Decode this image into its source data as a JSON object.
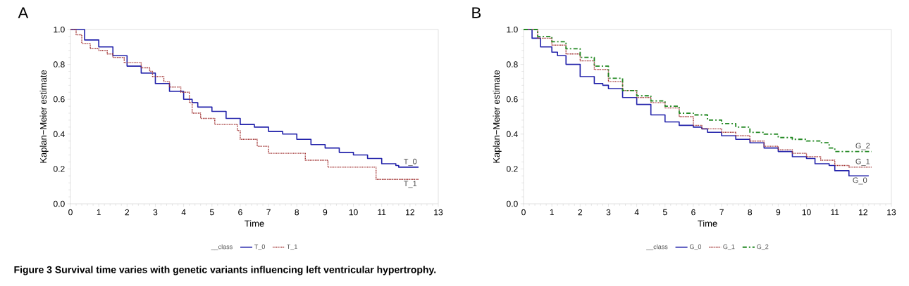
{
  "chart_data": [
    {
      "type": "step",
      "title": "A",
      "xlabel": "Time",
      "ylabel": "Kaplan−Meier estimate",
      "legend_title": "__class",
      "legend": "bottom",
      "grid": false,
      "xlim": [
        0,
        13
      ],
      "ylim": [
        0,
        1
      ],
      "xticks": [
        0,
        1,
        2,
        3,
        4,
        5,
        6,
        7,
        8,
        9,
        10,
        11,
        12,
        13
      ],
      "yticks": [
        {
          "value": 0,
          "label": "0.0"
        },
        {
          "value": 0.2,
          "label": "0.2"
        },
        {
          "value": 0.4,
          "label": "0.4"
        },
        {
          "value": 0.6,
          "label": "0.6"
        },
        {
          "value": 0.8,
          "label": "0.8"
        },
        {
          "value": 1,
          "label": "1.0"
        }
      ],
      "annotations": [
        "**Figure 3** Survival time varies with genetic variants influencing left ventricular hypertrophy."
      ],
      "series": [
        {
          "name": "T_0",
          "color": "#2222aa",
          "line_style": "solid",
          "x": [
            0,
            0.5,
            1,
            1.5,
            2,
            2.5,
            3,
            3.5,
            4,
            4.3,
            4.5,
            5,
            5.5,
            6,
            6.5,
            7,
            7.5,
            8,
            8.5,
            9,
            9.5,
            10,
            10.5,
            11,
            11.5,
            11.6,
            12.3
          ],
          "values": [
            1,
            0.94,
            0.9,
            0.85,
            0.79,
            0.75,
            0.69,
            0.645,
            0.6,
            0.58,
            0.555,
            0.53,
            0.49,
            0.455,
            0.44,
            0.415,
            0.4,
            0.37,
            0.34,
            0.32,
            0.295,
            0.28,
            0.26,
            0.23,
            0.22,
            0.21,
            0.21
          ]
        },
        {
          "name": "T_1",
          "color": "#a03030",
          "line_style": "dotted",
          "x": [
            0,
            0.2,
            0.4,
            0.7,
            1.0,
            1.3,
            1.5,
            1.9,
            2.5,
            2.8,
            2.9,
            3.3,
            3.5,
            3.9,
            4.2,
            4.3,
            4.6,
            5.1,
            5.9,
            6.0,
            6.6,
            7.0,
            8.3,
            9.1,
            10.8,
            12.3
          ],
          "values": [
            1,
            0.97,
            0.92,
            0.89,
            0.88,
            0.86,
            0.84,
            0.81,
            0.78,
            0.76,
            0.73,
            0.7,
            0.67,
            0.64,
            0.58,
            0.52,
            0.49,
            0.455,
            0.42,
            0.37,
            0.33,
            0.29,
            0.25,
            0.21,
            0.14,
            0.14
          ]
        }
      ]
    },
    {
      "type": "step",
      "title": "B",
      "xlabel": "Time",
      "ylabel": "Kaplan−Meier estimate",
      "legend_title": "__class",
      "legend": "bottom",
      "grid": false,
      "xlim": [
        0,
        13
      ],
      "ylim": [
        0,
        1
      ],
      "xticks": [
        0,
        1,
        2,
        3,
        4,
        5,
        6,
        7,
        8,
        9,
        10,
        11,
        12,
        13
      ],
      "yticks": [
        {
          "value": 0,
          "label": "0.0"
        },
        {
          "value": 0.2,
          "label": "0.2"
        },
        {
          "value": 0.4,
          "label": "0.4"
        },
        {
          "value": 0.6,
          "label": "0.6"
        },
        {
          "value": 0.8,
          "label": "0.8"
        },
        {
          "value": 1,
          "label": "1.0"
        }
      ],
      "series": [
        {
          "name": "G_0",
          "color": "#2222aa",
          "line_style": "solid",
          "x": [
            0,
            0.3,
            0.6,
            1,
            1.2,
            1.5,
            2,
            2.5,
            2.8,
            3,
            3.5,
            4,
            4.5,
            5,
            5.5,
            6,
            6.3,
            6.5,
            7,
            7.5,
            8,
            8.5,
            9,
            9.5,
            10,
            10.3,
            10.8,
            11,
            11.5,
            12.2
          ],
          "values": [
            1,
            0.95,
            0.9,
            0.87,
            0.85,
            0.8,
            0.73,
            0.69,
            0.68,
            0.66,
            0.61,
            0.57,
            0.51,
            0.47,
            0.45,
            0.44,
            0.43,
            0.41,
            0.39,
            0.37,
            0.35,
            0.32,
            0.3,
            0.27,
            0.26,
            0.23,
            0.22,
            0.19,
            0.16,
            0.16
          ]
        },
        {
          "name": "G_1",
          "color": "#a03030",
          "line_style": "dotted",
          "x": [
            0,
            0.5,
            1,
            1.5,
            2,
            2.5,
            3,
            3.5,
            4,
            4.5,
            5,
            5.5,
            6,
            6.3,
            7,
            7.5,
            8,
            8.5,
            9,
            9.5,
            10,
            10.5,
            11,
            11.5,
            12.3
          ],
          "values": [
            1,
            0.95,
            0.91,
            0.86,
            0.82,
            0.77,
            0.7,
            0.65,
            0.61,
            0.58,
            0.55,
            0.5,
            0.45,
            0.43,
            0.41,
            0.39,
            0.36,
            0.33,
            0.31,
            0.29,
            0.27,
            0.25,
            0.22,
            0.21,
            0.21
          ]
        },
        {
          "name": "G_2",
          "color": "#228822",
          "line_style": "dashed",
          "x": [
            0,
            0.5,
            1,
            1.5,
            2,
            2.5,
            3,
            3.5,
            4,
            4.5,
            5,
            5.5,
            6,
            6.5,
            7,
            7.5,
            8,
            8.5,
            9,
            9.5,
            10,
            10.5,
            10.8,
            11,
            12.3
          ],
          "values": [
            1,
            0.96,
            0.93,
            0.89,
            0.84,
            0.79,
            0.72,
            0.65,
            0.62,
            0.59,
            0.56,
            0.52,
            0.51,
            0.48,
            0.46,
            0.44,
            0.41,
            0.4,
            0.38,
            0.37,
            0.36,
            0.35,
            0.32,
            0.3,
            0.3
          ]
        }
      ]
    }
  ]
}
